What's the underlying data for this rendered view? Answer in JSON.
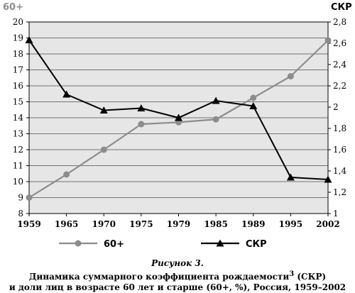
{
  "chart_data": {
    "type": "line",
    "categories": [
      "1959",
      "1965",
      "1970",
      "1975",
      "1979",
      "1985",
      "1989",
      "1995",
      "2002"
    ],
    "series": [
      {
        "name": "60+",
        "axis": "left",
        "marker": "circle",
        "color": "#8c8c8c",
        "values": [
          9.0,
          10.45,
          12.0,
          13.6,
          13.72,
          13.9,
          15.25,
          16.6,
          18.85
        ]
      },
      {
        "name": "СКР",
        "axis": "right",
        "marker": "triangle",
        "color": "#000000",
        "values": [
          2.63,
          2.12,
          1.97,
          1.99,
          1.9,
          2.06,
          2.01,
          1.34,
          1.32
        ]
      }
    ],
    "y_left": {
      "label": "60+",
      "min": 8,
      "max": 20,
      "step": 1,
      "ticks": [
        "8",
        "9",
        "10",
        "11",
        "12",
        "13",
        "14",
        "15",
        "16",
        "17",
        "18",
        "19",
        "20"
      ]
    },
    "y_right": {
      "label": "СКР",
      "min": 1.0,
      "max": 2.8,
      "step": 0.2,
      "ticks": [
        "1",
        "1,2",
        "1,4",
        "1,6",
        "1,8",
        "2",
        "2,2",
        "2,4",
        "2,6",
        "2,8"
      ]
    },
    "grid": true,
    "legend_position": "bottom",
    "legend": [
      "60+",
      "СКР"
    ]
  },
  "caption": {
    "figure": "Рисунок 3.",
    "line1": "Динамика суммарного коэффициента рождаемости",
    "sup": "3",
    "line1_end": " (СКР)",
    "line2": "и доли лиц в возрасте 60 лет и старше (60+, %), Россия, 1959–2002"
  }
}
